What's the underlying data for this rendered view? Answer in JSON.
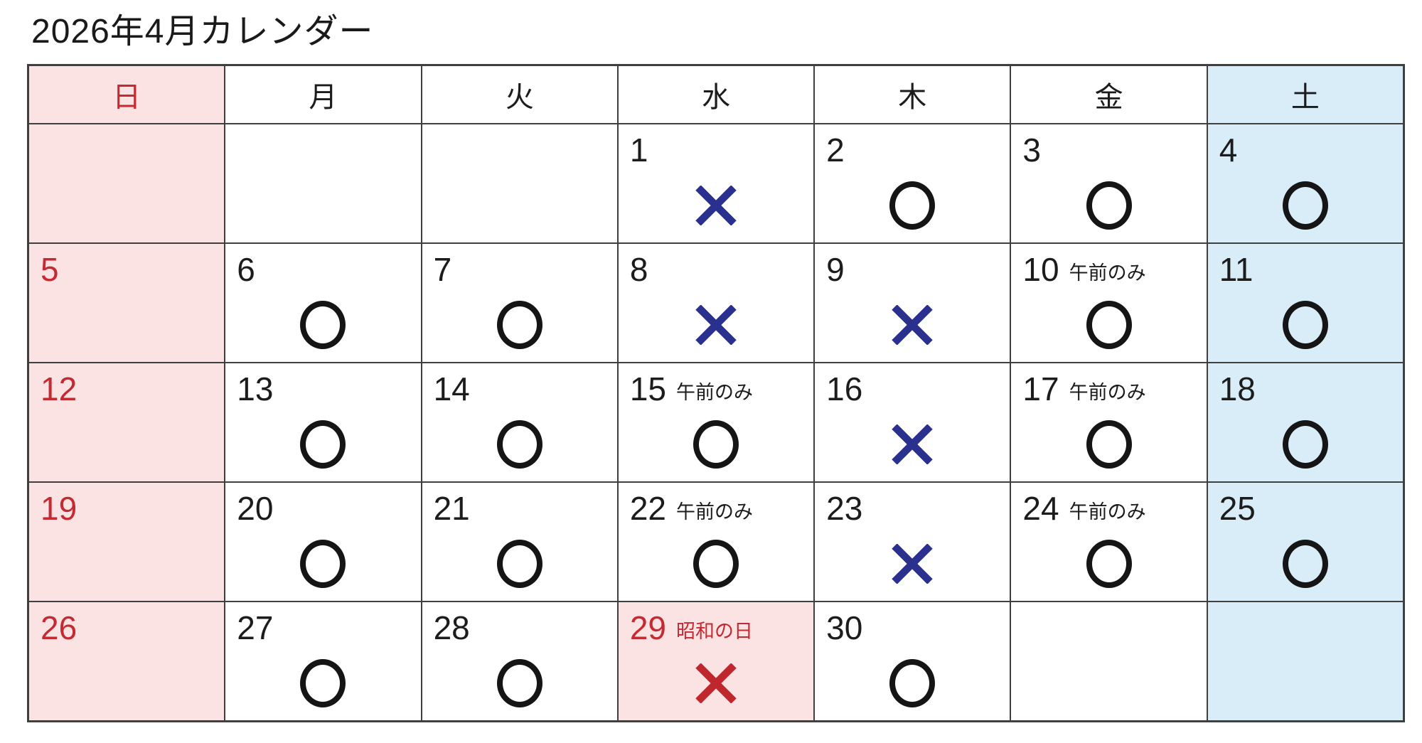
{
  "page": {
    "title": "2026年4月カレンダー"
  },
  "colors": {
    "grid_line": "#3f3f3f",
    "text": "#1c1c1c",
    "sunday_bg": "#fbe3e4",
    "sunday_text": "#c42a31",
    "saturday_bg": "#d9edf8",
    "open_circle": "#151515",
    "closed_x_blue": "#2a308e",
    "closed_x_red": "#c0272d"
  },
  "calendar": {
    "day_headers": [
      "日",
      "月",
      "火",
      "水",
      "木",
      "金",
      "土"
    ],
    "weeks": [
      [
        {
          "day": "",
          "note": "",
          "mark": "none",
          "mark_color": ""
        },
        {
          "day": "",
          "note": "",
          "mark": "none",
          "mark_color": ""
        },
        {
          "day": "",
          "note": "",
          "mark": "none",
          "mark_color": ""
        },
        {
          "day": "1",
          "note": "",
          "mark": "x",
          "mark_color": "closed_x_blue"
        },
        {
          "day": "2",
          "note": "",
          "mark": "circle",
          "mark_color": "open_circle"
        },
        {
          "day": "3",
          "note": "",
          "mark": "circle",
          "mark_color": "open_circle"
        },
        {
          "day": "4",
          "note": "",
          "mark": "circle",
          "mark_color": "open_circle"
        }
      ],
      [
        {
          "day": "5",
          "note": "",
          "mark": "none",
          "mark_color": ""
        },
        {
          "day": "6",
          "note": "",
          "mark": "circle",
          "mark_color": "open_circle"
        },
        {
          "day": "7",
          "note": "",
          "mark": "circle",
          "mark_color": "open_circle"
        },
        {
          "day": "8",
          "note": "",
          "mark": "x",
          "mark_color": "closed_x_blue"
        },
        {
          "day": "9",
          "note": "",
          "mark": "x",
          "mark_color": "closed_x_blue"
        },
        {
          "day": "10",
          "note": "午前のみ",
          "mark": "circle",
          "mark_color": "open_circle"
        },
        {
          "day": "11",
          "note": "",
          "mark": "circle",
          "mark_color": "open_circle"
        }
      ],
      [
        {
          "day": "12",
          "note": "",
          "mark": "none",
          "mark_color": ""
        },
        {
          "day": "13",
          "note": "",
          "mark": "circle",
          "mark_color": "open_circle"
        },
        {
          "day": "14",
          "note": "",
          "mark": "circle",
          "mark_color": "open_circle"
        },
        {
          "day": "15",
          "note": "午前のみ",
          "mark": "circle",
          "mark_color": "open_circle"
        },
        {
          "day": "16",
          "note": "",
          "mark": "x",
          "mark_color": "closed_x_blue"
        },
        {
          "day": "17",
          "note": "午前のみ",
          "mark": "circle",
          "mark_color": "open_circle"
        },
        {
          "day": "18",
          "note": "",
          "mark": "circle",
          "mark_color": "open_circle"
        }
      ],
      [
        {
          "day": "19",
          "note": "",
          "mark": "none",
          "mark_color": ""
        },
        {
          "day": "20",
          "note": "",
          "mark": "circle",
          "mark_color": "open_circle"
        },
        {
          "day": "21",
          "note": "",
          "mark": "circle",
          "mark_color": "open_circle"
        },
        {
          "day": "22",
          "note": "午前のみ",
          "mark": "circle",
          "mark_color": "open_circle"
        },
        {
          "day": "23",
          "note": "",
          "mark": "x",
          "mark_color": "closed_x_blue"
        },
        {
          "day": "24",
          "note": "午前のみ",
          "mark": "circle",
          "mark_color": "open_circle"
        },
        {
          "day": "25",
          "note": "",
          "mark": "circle",
          "mark_color": "open_circle"
        }
      ],
      [
        {
          "day": "26",
          "note": "",
          "mark": "none",
          "mark_color": ""
        },
        {
          "day": "27",
          "note": "",
          "mark": "circle",
          "mark_color": "open_circle"
        },
        {
          "day": "28",
          "note": "",
          "mark": "circle",
          "mark_color": "open_circle"
        },
        {
          "day": "29",
          "note": "昭和の日",
          "mark": "x",
          "mark_color": "closed_x_red",
          "holiday": true
        },
        {
          "day": "30",
          "note": "",
          "mark": "circle",
          "mark_color": "open_circle"
        },
        {
          "day": "",
          "note": "",
          "mark": "none",
          "mark_color": ""
        },
        {
          "day": "",
          "note": "",
          "mark": "none",
          "mark_color": ""
        }
      ]
    ]
  }
}
